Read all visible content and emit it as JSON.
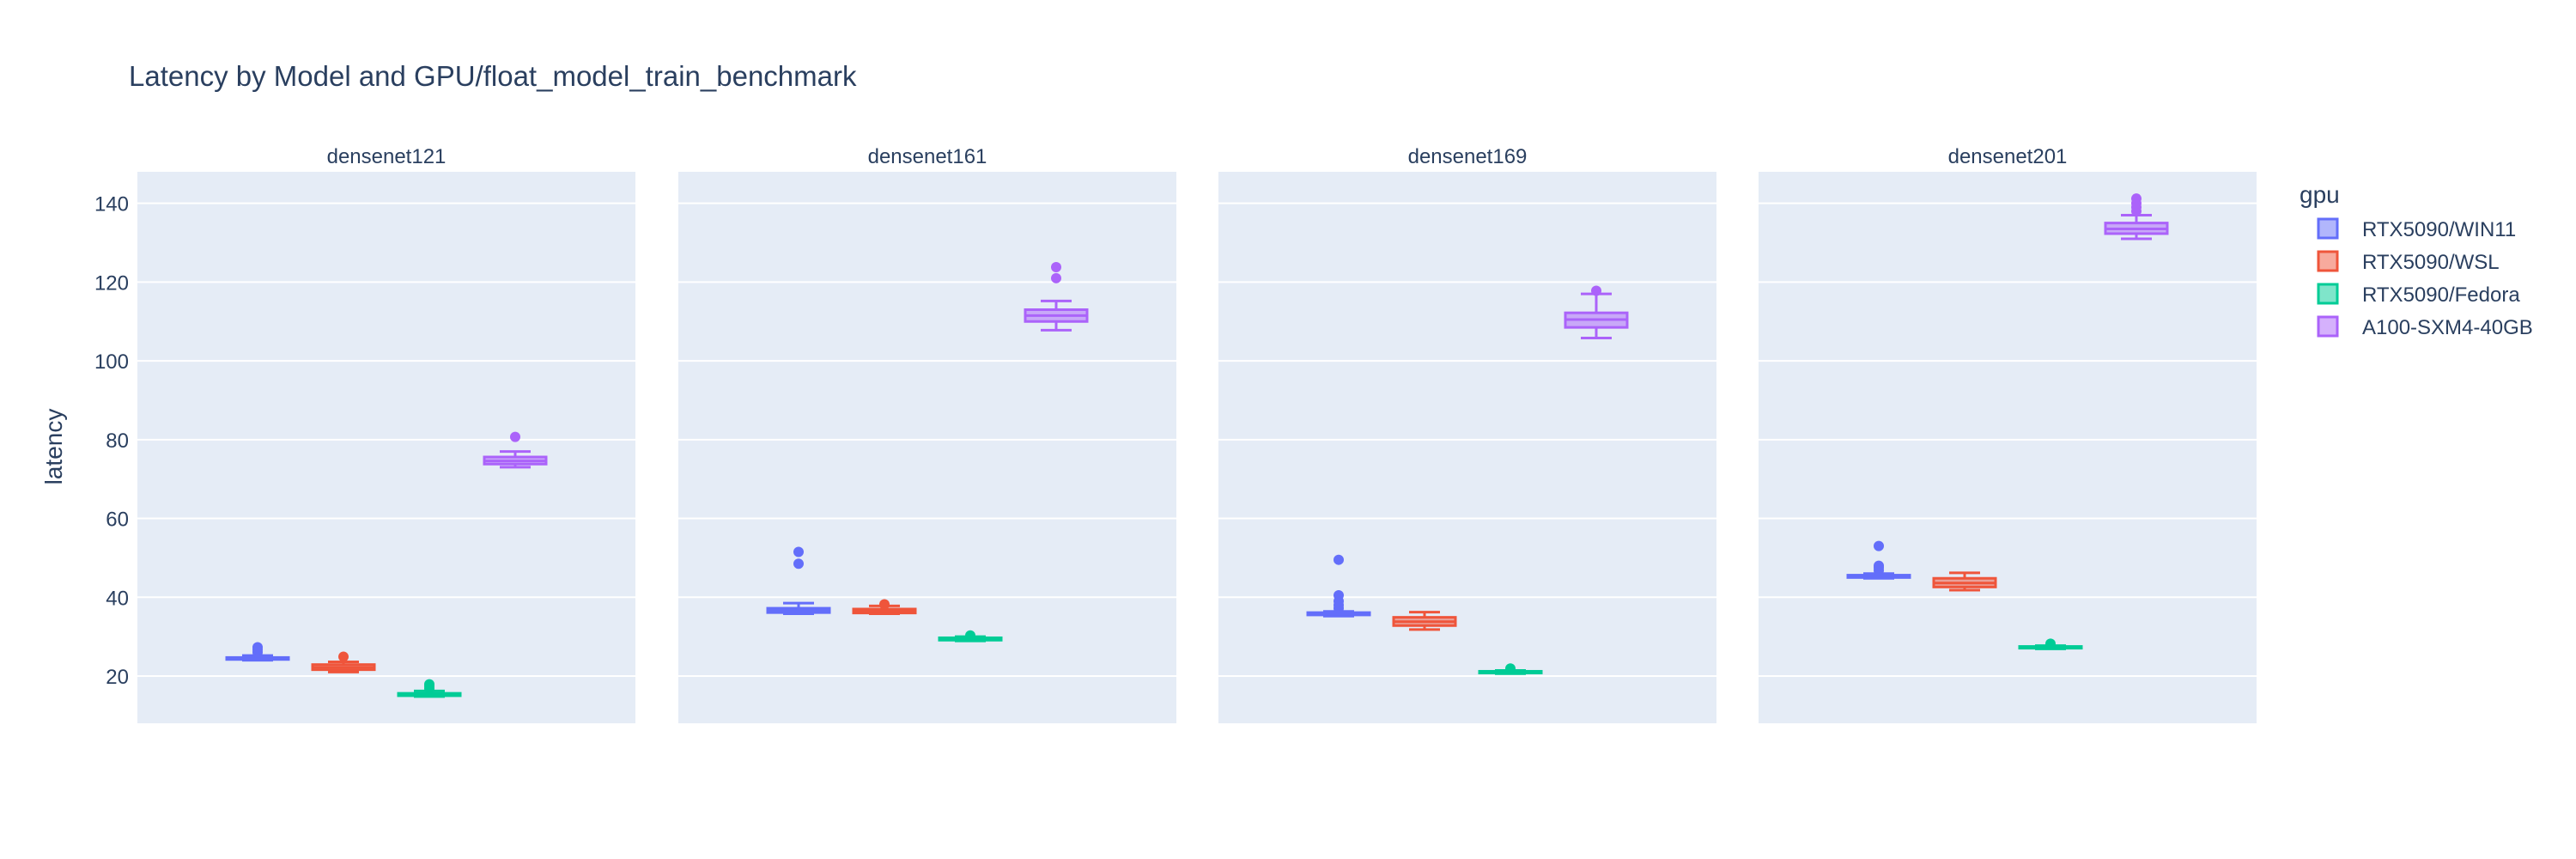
{
  "title": "Latency by Model and GPU/float_model_train_benchmark",
  "colors": {
    "RTX5090/WIN11": "#636efa",
    "RTX5090/WSL": "#ef553b",
    "RTX5090/Fedora": "#00cc96",
    "A100-SXM4-40GB": "#ab63fa",
    "plot_bg": "#e5ecf6",
    "grid": "#ffffff",
    "text": "#2a3f5f"
  },
  "chart_data": {
    "type": "box",
    "title": "Latency by Model and GPU/float_model_train_benchmark",
    "ylabel": "latency",
    "xlabel": "",
    "ylim": [
      8,
      148
    ],
    "yticks": [
      20,
      40,
      60,
      80,
      100,
      120,
      140
    ],
    "grid": true,
    "legend": {
      "title": "gpu",
      "position": "right",
      "entries": [
        "RTX5090/WIN11",
        "RTX5090/WSL",
        "RTX5090/Fedora",
        "A100-SXM4-40GB"
      ]
    },
    "facets": [
      {
        "name": "densenet121",
        "boxes": [
          {
            "gpu": "RTX5090/WIN11",
            "min": 24.0,
            "q1": 24.2,
            "median": 24.4,
            "q3": 24.7,
            "max": 25.2,
            "outliers": [
              26.0,
              26.7,
              27.3
            ]
          },
          {
            "gpu": "RTX5090/WSL",
            "min": 21.0,
            "q1": 21.6,
            "median": 22.2,
            "q3": 22.9,
            "max": 23.6,
            "outliers": [
              24.9
            ]
          },
          {
            "gpu": "RTX5090/Fedora",
            "min": 14.8,
            "q1": 15.0,
            "median": 15.3,
            "q3": 15.6,
            "max": 16.2,
            "outliers": [
              16.8,
              17.4,
              17.9
            ]
          },
          {
            "gpu": "A100-SXM4-40GB",
            "min": 73.0,
            "q1": 73.8,
            "median": 74.6,
            "q3": 75.6,
            "max": 77.0,
            "outliers": [
              80.7
            ]
          }
        ]
      },
      {
        "name": "densenet161",
        "boxes": [
          {
            "gpu": "RTX5090/WIN11",
            "min": 35.8,
            "q1": 36.1,
            "median": 36.6,
            "q3": 37.2,
            "max": 38.5,
            "outliers": [
              48.5,
              51.5
            ]
          },
          {
            "gpu": "RTX5090/WSL",
            "min": 35.8,
            "q1": 36.0,
            "median": 36.5,
            "q3": 37.0,
            "max": 37.8,
            "outliers": [
              38.2
            ]
          },
          {
            "gpu": "RTX5090/Fedora",
            "min": 28.9,
            "q1": 29.1,
            "median": 29.4,
            "q3": 29.7,
            "max": 30.0,
            "outliers": [
              30.3
            ]
          },
          {
            "gpu": "A100-SXM4-40GB",
            "min": 107.8,
            "q1": 110.0,
            "median": 111.5,
            "q3": 113.0,
            "max": 115.2,
            "outliers": [
              121.0,
              123.8
            ]
          }
        ]
      },
      {
        "name": "densenet169",
        "boxes": [
          {
            "gpu": "RTX5090/WIN11",
            "min": 35.2,
            "q1": 35.5,
            "median": 35.8,
            "q3": 36.1,
            "max": 36.4,
            "outliers": [
              37.2,
              38.0,
              39.0,
              40.5,
              49.5
            ]
          },
          {
            "gpu": "RTX5090/WSL",
            "min": 31.8,
            "q1": 32.8,
            "median": 33.8,
            "q3": 34.9,
            "max": 36.2,
            "outliers": []
          },
          {
            "gpu": "RTX5090/Fedora",
            "min": 20.6,
            "q1": 20.8,
            "median": 21.0,
            "q3": 21.2,
            "max": 21.4,
            "outliers": [
              21.9
            ]
          },
          {
            "gpu": "A100-SXM4-40GB",
            "min": 105.8,
            "q1": 108.5,
            "median": 110.5,
            "q3": 112.2,
            "max": 117.0,
            "outliers": [
              117.8
            ]
          }
        ]
      },
      {
        "name": "densenet201",
        "boxes": [
          {
            "gpu": "RTX5090/WIN11",
            "min": 44.8,
            "q1": 45.0,
            "median": 45.3,
            "q3": 45.6,
            "max": 46.0,
            "outliers": [
              46.8,
              47.5,
              48.0,
              53.0
            ]
          },
          {
            "gpu": "RTX5090/WSL",
            "min": 41.8,
            "q1": 42.6,
            "median": 43.6,
            "q3": 44.8,
            "max": 46.2,
            "outliers": []
          },
          {
            "gpu": "RTX5090/Fedora",
            "min": 26.9,
            "q1": 27.1,
            "median": 27.3,
            "q3": 27.5,
            "max": 27.7,
            "outliers": [
              28.2
            ]
          },
          {
            "gpu": "A100-SXM4-40GB",
            "min": 131.0,
            "q1": 132.3,
            "median": 133.5,
            "q3": 135.0,
            "max": 137.0,
            "outliers": [
              138.0,
              139.0,
              140.0,
              141.2
            ]
          }
        ]
      }
    ]
  }
}
